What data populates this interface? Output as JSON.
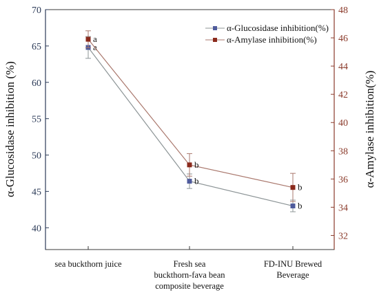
{
  "chart_data": {
    "type": "line",
    "categories": [
      [
        "sea buckthorn juice"
      ],
      [
        "Fresh sea",
        "buckthorn-fava bean",
        "composite beverage"
      ],
      [
        "FD-INU Brewed",
        "Beverage"
      ]
    ],
    "ylabel_left": "α-Glucosidase inhibition (%)",
    "ylabel_right": "α-Amylase inhibition(%)",
    "ylim_left": [
      37,
      70
    ],
    "ylim_right": [
      31,
      48
    ],
    "yticks_left": [
      "40",
      "45",
      "50",
      "55",
      "60",
      "65",
      "70"
    ],
    "yticks_right": [
      "32",
      "34",
      "36",
      "38",
      "40",
      "42",
      "44",
      "46",
      "48"
    ],
    "legend_position": "top-right",
    "series": [
      {
        "name": "α-Glucosidase inhibition(%)",
        "axis": "left",
        "color": "#4f5b9c",
        "line_color": "#8c9496",
        "values": [
          64.8,
          46.4,
          43.0
        ],
        "errors": [
          1.5,
          1.0,
          0.8
        ],
        "labels": [
          "a",
          "b",
          "b"
        ]
      },
      {
        "name": "α-Amylase inhibition(%)",
        "axis": "right",
        "color": "#8b2a1c",
        "line_color": "#a9776c",
        "values": [
          45.9,
          37.0,
          35.4
        ],
        "errors": [
          0.6,
          0.8,
          1.0
        ],
        "labels": [
          "a",
          "b",
          "b"
        ]
      }
    ]
  }
}
